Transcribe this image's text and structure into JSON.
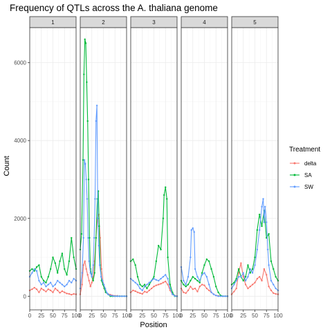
{
  "chart_data": {
    "type": "line",
    "title": "Frequency of QTLs across the A. thaliana genome",
    "xlabel": "Position",
    "ylabel": "Count",
    "facet_labels": [
      "1",
      "2",
      "3",
      "4",
      "5"
    ],
    "xlim": [
      0,
      100
    ],
    "ylim": [
      -350,
      6900
    ],
    "x_ticks": [
      0,
      25,
      50,
      75,
      100
    ],
    "y_ticks": [
      0,
      2000,
      4000,
      6000
    ],
    "grid": true,
    "theme": "bw",
    "legend": {
      "title": "Treatment",
      "position": "right"
    },
    "series": [
      {
        "name": "delta",
        "color": "#F8766D",
        "facets": [
          {
            "x": [
              0,
              5,
              10,
              15,
              20,
              25,
              30,
              35,
              40,
              45,
              50,
              55,
              60,
              65,
              70,
              75,
              80,
              85,
              90,
              95,
              100
            ],
            "y": [
              150,
              180,
              220,
              180,
              100,
              200,
              160,
              120,
              180,
              150,
              100,
              200,
              150,
              90,
              130,
              100,
              70,
              60,
              40,
              60,
              50
            ]
          },
          {
            "x": [
              0,
              4,
              7,
              10,
              13,
              16,
              19,
              22,
              25,
              28,
              31,
              34,
              37,
              40,
              43,
              46,
              49,
              52,
              55,
              60,
              65,
              70,
              75,
              80,
              85,
              90,
              95,
              100
            ],
            "y": [
              50,
              300,
              800,
              900,
              700,
              550,
              400,
              250,
              350,
              500,
              900,
              1500,
              2000,
              2100,
              1500,
              700,
              350,
              200,
              100,
              60,
              40,
              20,
              10,
              10,
              0,
              0,
              0,
              0
            ]
          },
          {
            "x": [
              0,
              5,
              10,
              15,
              20,
              25,
              30,
              35,
              40,
              45,
              50,
              55,
              60,
              65,
              70,
              75,
              80,
              85,
              90,
              95,
              100
            ],
            "y": [
              100,
              150,
              130,
              100,
              80,
              60,
              120,
              100,
              150,
              200,
              250,
              280,
              300,
              320,
              350,
              380,
              300,
              150,
              50,
              20,
              0
            ]
          },
          {
            "x": [
              0,
              5,
              10,
              15,
              20,
              25,
              30,
              35,
              40,
              45,
              50,
              55,
              60,
              65,
              70,
              75,
              80,
              85,
              90,
              95,
              100
            ],
            "y": [
              200,
              100,
              80,
              150,
              250,
              180,
              200,
              120,
              250,
              300,
              280,
              200,
              150,
              100,
              50,
              20,
              10,
              10,
              0,
              0,
              0
            ]
          },
          {
            "x": [
              0,
              5,
              10,
              15,
              20,
              25,
              30,
              35,
              40,
              45,
              50,
              55,
              60,
              65,
              70,
              75,
              80,
              85,
              90,
              95,
              100
            ],
            "y": [
              50,
              120,
              200,
              600,
              850,
              500,
              300,
              200,
              250,
              300,
              350,
              450,
              500,
              400,
              700,
              550,
              250,
              150,
              80,
              60,
              50
            ]
          }
        ]
      },
      {
        "name": "SA",
        "color": "#00BA38",
        "facets": [
          {
            "x": [
              0,
              5,
              10,
              15,
              20,
              25,
              30,
              35,
              40,
              45,
              50,
              55,
              60,
              65,
              70,
              75,
              80,
              85,
              90,
              95,
              100
            ],
            "y": [
              650,
              700,
              650,
              750,
              800,
              500,
              400,
              350,
              500,
              700,
              1000,
              850,
              600,
              900,
              1100,
              700,
              550,
              900,
              1500,
              1000,
              700
            ]
          },
          {
            "x": [
              0,
              3,
              6,
              8,
              10,
              12,
              14,
              16,
              18,
              20,
              22,
              25,
              28,
              31,
              34,
              37,
              39,
              41,
              43,
              46,
              49,
              52,
              55,
              60,
              65,
              70,
              75,
              80,
              85,
              90,
              95,
              100
            ],
            "y": [
              1200,
              1600,
              3500,
              5700,
              6600,
              6500,
              5500,
              4500,
              3000,
              1500,
              700,
              500,
              400,
              600,
              1500,
              2500,
              2700,
              1800,
              800,
              400,
              300,
              200,
              100,
              50,
              0,
              0,
              0,
              0,
              0,
              0,
              0,
              0
            ]
          },
          {
            "x": [
              0,
              5,
              10,
              15,
              20,
              25,
              30,
              35,
              40,
              45,
              50,
              55,
              60,
              65,
              70,
              72,
              75,
              78,
              80,
              85,
              90,
              95,
              100
            ],
            "y": [
              900,
              950,
              800,
              500,
              300,
              250,
              300,
              200,
              300,
              400,
              500,
              900,
              1300,
              1200,
              2000,
              2600,
              2800,
              2500,
              1000,
              300,
              100,
              0,
              0
            ]
          },
          {
            "x": [
              0,
              5,
              10,
              15,
              20,
              25,
              30,
              35,
              40,
              45,
              50,
              55,
              60,
              65,
              70,
              75,
              80,
              85,
              90,
              95,
              100
            ],
            "y": [
              400,
              300,
              250,
              300,
              400,
              500,
              450,
              400,
              350,
              600,
              800,
              950,
              900,
              700,
              500,
              250,
              100,
              20,
              0,
              0,
              0
            ]
          },
          {
            "x": [
              0,
              5,
              10,
              15,
              20,
              25,
              30,
              35,
              40,
              45,
              50,
              55,
              60,
              65,
              70,
              75,
              80,
              85,
              90,
              95,
              100
            ],
            "y": [
              300,
              350,
              450,
              700,
              500,
              400,
              500,
              800,
              600,
              700,
              1000,
              1700,
              2100,
              1800,
              2200,
              1500,
              1600,
              900,
              700,
              500,
              400
            ]
          }
        ]
      },
      {
        "name": "SW",
        "color": "#619CFF",
        "facets": [
          {
            "x": [
              0,
              5,
              10,
              15,
              20,
              25,
              30,
              35,
              40,
              45,
              50,
              55,
              60,
              65,
              70,
              75,
              80,
              85,
              90,
              95,
              100
            ],
            "y": [
              500,
              600,
              700,
              650,
              400,
              300,
              350,
              250,
              300,
              350,
              250,
              300,
              400,
              350,
              300,
              250,
              300,
              400,
              350,
              450,
              400
            ]
          },
          {
            "x": [
              0,
              4,
              7,
              9,
              11,
              13,
              15,
              17,
              19,
              22,
              25,
              28,
              30,
              32,
              34,
              36,
              38,
              40,
              42,
              45,
              48,
              51,
              54,
              57,
              60,
              65,
              70,
              75,
              80,
              85,
              90,
              95,
              100
            ],
            "y": [
              200,
              600,
              1500,
              3500,
              3400,
              3000,
              2500,
              1500,
              900,
              600,
              500,
              800,
              1500,
              2500,
              4500,
              4900,
              2000,
              1300,
              800,
              500,
              400,
              300,
              200,
              100,
              50,
              20,
              10,
              0,
              0,
              0,
              0,
              0,
              0
            ]
          },
          {
            "x": [
              0,
              5,
              10,
              15,
              20,
              25,
              30,
              35,
              40,
              45,
              50,
              55,
              60,
              65,
              70,
              75,
              80,
              85,
              90,
              95,
              100
            ],
            "y": [
              450,
              400,
              350,
              300,
              200,
              150,
              250,
              300,
              350,
              400,
              450,
              420,
              400,
              450,
              500,
              550,
              450,
              200,
              50,
              10,
              0
            ]
          },
          {
            "x": [
              0,
              5,
              10,
              15,
              20,
              22,
              25,
              28,
              30,
              35,
              40,
              45,
              50,
              55,
              60,
              65,
              70,
              75,
              80,
              85,
              90,
              95,
              100
            ],
            "y": [
              750,
              400,
              300,
              500,
              1000,
              1700,
              1750,
              1650,
              700,
              500,
              400,
              550,
              600,
              500,
              300,
              100,
              50,
              20,
              0,
              0,
              0,
              0,
              0
            ]
          },
          {
            "x": [
              0,
              5,
              10,
              15,
              20,
              25,
              30,
              35,
              40,
              45,
              50,
              55,
              60,
              65,
              68,
              70,
              72,
              75,
              78,
              80,
              85,
              90,
              95,
              100
            ],
            "y": [
              200,
              300,
              400,
              500,
              500,
              600,
              400,
              500,
              700,
              600,
              800,
              1200,
              1700,
              2300,
              2500,
              1900,
              2300,
              1900,
              1200,
              800,
              400,
              300,
              200,
              150
            ]
          }
        ]
      }
    ]
  }
}
